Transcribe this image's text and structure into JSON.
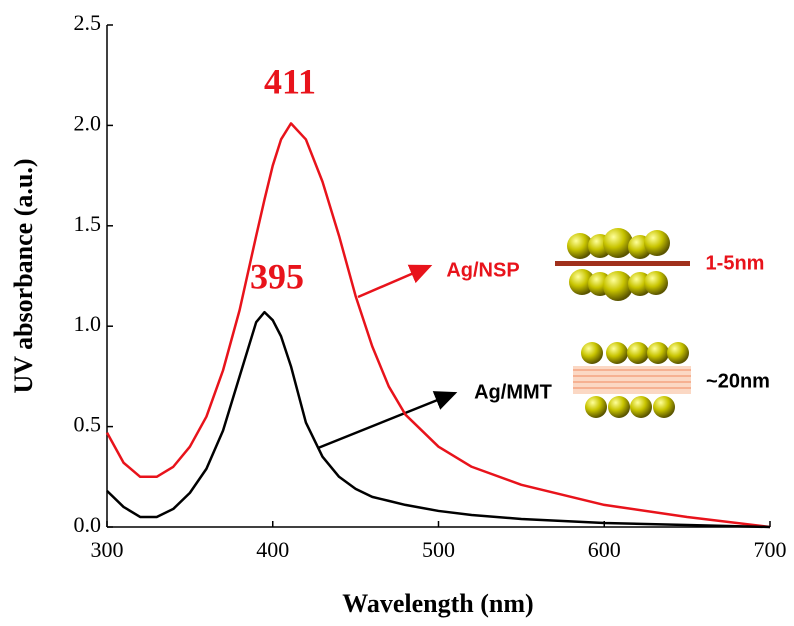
{
  "chart_data": {
    "type": "line",
    "x_label": "Wavelength (nm)",
    "y_label": "UV absorbance (a.u.)",
    "x": [
      300,
      310,
      320,
      330,
      340,
      350,
      360,
      370,
      380,
      390,
      395,
      400,
      405,
      411,
      420,
      430,
      440,
      450,
      460,
      470,
      480,
      500,
      520,
      550,
      600,
      650,
      700
    ],
    "series": [
      {
        "name": "Ag/NSP",
        "color": "#e8131b",
        "values": [
          0.47,
          0.32,
          0.25,
          0.25,
          0.3,
          0.4,
          0.55,
          0.78,
          1.08,
          1.45,
          1.63,
          1.8,
          1.93,
          2.01,
          1.93,
          1.72,
          1.45,
          1.15,
          0.9,
          0.7,
          0.56,
          0.4,
          0.3,
          0.21,
          0.11,
          0.05,
          0
        ]
      },
      {
        "name": "Ag/MMT",
        "color": "#000000",
        "values": [
          0.18,
          0.1,
          0.05,
          0.05,
          0.09,
          0.17,
          0.29,
          0.48,
          0.75,
          1.02,
          1.07,
          1.03,
          0.95,
          0.8,
          0.52,
          0.35,
          0.25,
          0.19,
          0.15,
          0.13,
          0.11,
          0.08,
          0.06,
          0.04,
          0.02,
          0.01,
          0
        ]
      }
    ],
    "xlim": [
      300,
      700
    ],
    "xticks": [
      300,
      400,
      500,
      600,
      700
    ],
    "ylim": [
      0,
      2.5
    ],
    "yticks": [
      {
        "value": 0,
        "label": "0.0"
      },
      0.5,
      {
        "value": 1,
        "label": "1.0"
      },
      1.5,
      {
        "value": 2,
        "label": "2.0"
      },
      2.5
    ],
    "annotations": [
      {
        "text": "411",
        "color": "#e8131b"
      },
      {
        "text": "395",
        "color": "#e8131b"
      },
      {
        "text": "1-5nm",
        "color": "#e8131b"
      },
      {
        "text": "~20nm",
        "color": "#000000"
      }
    ]
  }
}
